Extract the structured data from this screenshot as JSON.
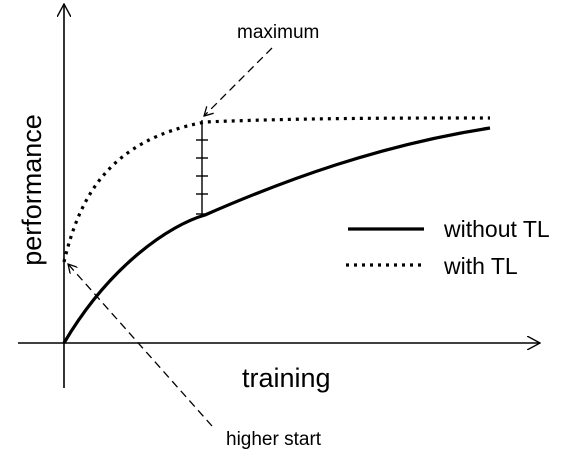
{
  "axes": {
    "x_label": "training",
    "y_label": "performance"
  },
  "annotations": {
    "maximum": "maximum",
    "higher_start": "higher start"
  },
  "legend": {
    "without": "without TL",
    "with": "with TL"
  },
  "colors": {
    "ink": "#000000",
    "background": "#ffffff"
  }
}
